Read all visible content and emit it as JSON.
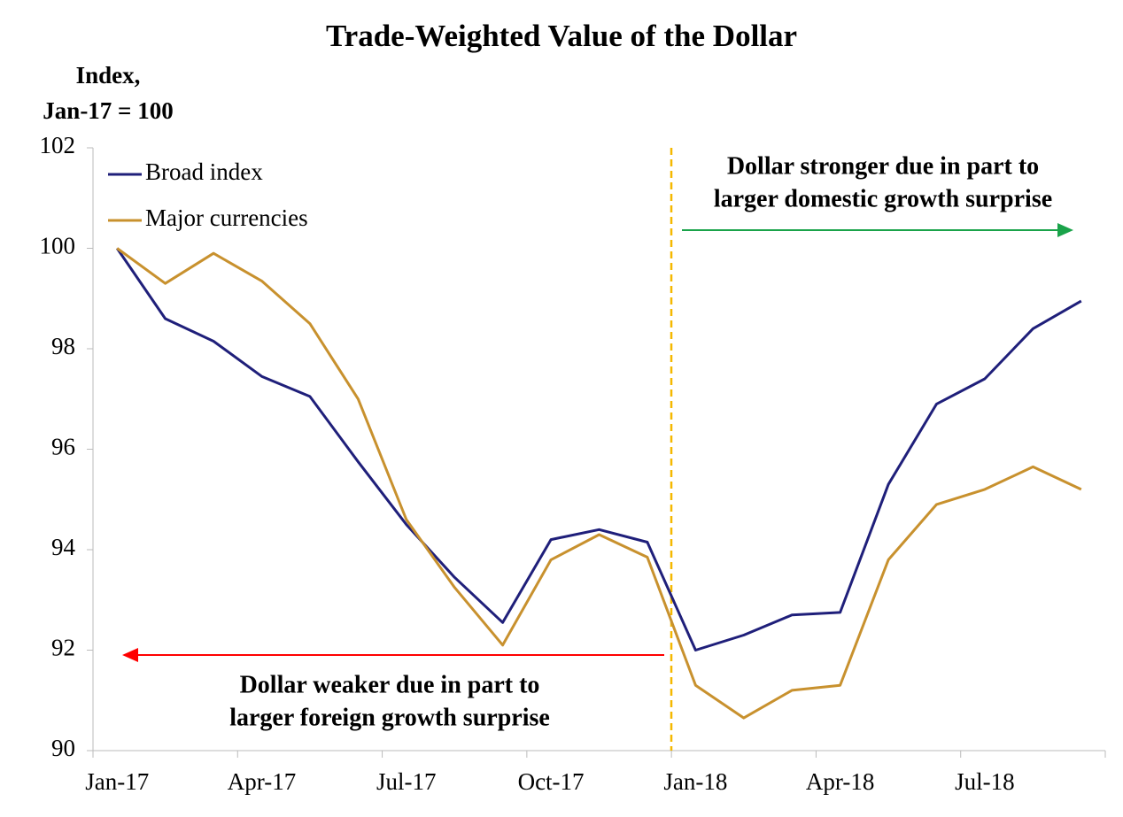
{
  "chart_data": {
    "type": "line",
    "title": "Trade-Weighted Value of the Dollar",
    "y_label": [
      "Index,",
      "Jan-17 = 100"
    ],
    "categories": [
      "Jan-17",
      null,
      null,
      "Apr-17",
      null,
      null,
      "Jul-17",
      null,
      null,
      "Oct-17",
      null,
      null,
      "Jan-18",
      null,
      null,
      "Apr-18",
      null,
      null,
      "Jul-18",
      null,
      null
    ],
    "series": [
      {
        "name": "Broad index",
        "color": "#1f1f7a",
        "values": [
          100,
          98.6,
          98.15,
          97.45,
          97.05,
          95.75,
          94.5,
          93.45,
          92.55,
          94.2,
          94.4,
          94.15,
          92.0,
          92.3,
          92.7,
          92.75,
          95.3,
          96.9,
          97.4,
          98.4,
          98.95
        ]
      },
      {
        "name": "Major currencies",
        "color": "#c8912e",
        "values": [
          100,
          99.3,
          99.9,
          99.35,
          98.5,
          97.0,
          94.6,
          93.25,
          92.1,
          93.8,
          94.3,
          93.85,
          91.3,
          90.65,
          91.2,
          91.3,
          93.8,
          94.9,
          95.2,
          95.65,
          95.2
        ]
      }
    ],
    "ylim": [
      90,
      102
    ],
    "yticks": [
      90,
      92,
      94,
      96,
      98,
      100,
      102
    ],
    "legend": "upper left",
    "annotations": [
      {
        "lines": [
          "Dollar weaker due in part to",
          "larger foreign growth surprise"
        ],
        "color": "#ff0000"
      },
      {
        "lines": [
          "Dollar stronger due in part to",
          "larger domestic growth surprise"
        ],
        "color": "#1aa34a"
      }
    ]
  }
}
